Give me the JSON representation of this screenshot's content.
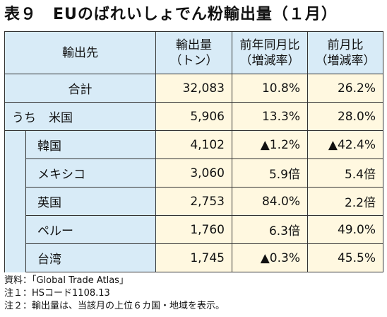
{
  "title": "表９　EUのばれいしょでん粉輸出量（１月）",
  "table": {
    "headers": {
      "destination": "輸出先",
      "volume": [
        "輸出量",
        "（トン）"
      ],
      "yoy": [
        "前年同月比",
        "（増減率）"
      ],
      "mom": [
        "前月比",
        "（増減率）"
      ]
    },
    "rows": [
      {
        "country": "合計",
        "volume": "32,083",
        "yoy": "10.8%",
        "mom": "26.2%"
      },
      {
        "prefix": "うち",
        "country": "米国",
        "volume": "5,906",
        "yoy": "13.3%",
        "mom": "28.0%"
      },
      {
        "country": "韓国",
        "volume": "4,102",
        "yoy": "▲1.2%",
        "mom": "▲42.4%"
      },
      {
        "country": "メキシコ",
        "volume": "3,060",
        "yoy": "5.9倍",
        "mom": "5.4倍"
      },
      {
        "country": "英国",
        "volume": "2,753",
        "yoy": "84.0%",
        "mom": "2.2倍"
      },
      {
        "country": "ペルー",
        "volume": "1,760",
        "yoy": "6.3倍",
        "mom": "49.0%"
      },
      {
        "country": "台湾",
        "volume": "1,745",
        "yoy": "▲0.3%",
        "mom": "45.5%"
      }
    ]
  },
  "footnotes": [
    "資料：「Global Trade Atlas」",
    "注１：HSコード1108.13",
    "注２：輸出量は、当該月の上位６カ国・地域を表示。"
  ],
  "colors": {
    "header_bg": "#d8ebf7",
    "value_bg": "#fff8e0",
    "border": "#333333"
  }
}
